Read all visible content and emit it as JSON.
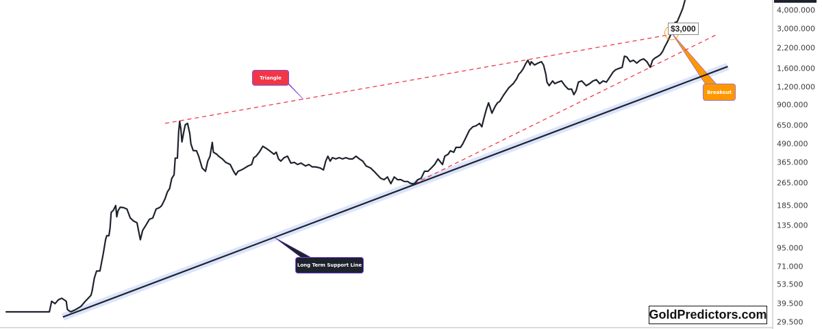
{
  "chart_data": {
    "type": "line",
    "title": "",
    "xlabel": "",
    "ylabel": "",
    "y_scale": "log",
    "ylim": [
      26.5,
      4700
    ],
    "xlim": [
      1964.0,
      2032.8
    ],
    "grid": false,
    "legend": "none",
    "y_ticks": [
      "4,000.000",
      "3,000.000",
      "2,200.000",
      "1,600.000",
      "1,200.000",
      "900.000",
      "650.000",
      "490.000",
      "365.000",
      "265.000",
      "185.000",
      "135.000",
      "95.000",
      "71.000",
      "53.500",
      "39.500",
      "29.500"
    ],
    "y_tick_values": [
      4000,
      3000,
      2200,
      1600,
      1200,
      900,
      650,
      490,
      365,
      265,
      185,
      135,
      95,
      71,
      53.5,
      39.5,
      29.5
    ],
    "colors": {
      "price": "#1e222d",
      "support": "#1e222d",
      "support_band": "#dbe4fb",
      "triangle": "#f23645",
      "breakout": "#ff9800"
    },
    "series": [
      {
        "points": [
          [
            1964.5,
            34.7
          ],
          [
            1968.4,
            34.7
          ],
          [
            1968.6,
            41
          ],
          [
            1968.9,
            39.5
          ],
          [
            1969.2,
            42
          ],
          [
            1969.5,
            43
          ],
          [
            1969.9,
            41
          ],
          [
            1970.0,
            36
          ],
          [
            1970.3,
            34.7
          ],
          [
            1970.7,
            35.8
          ],
          [
            1971.2,
            37.8
          ],
          [
            1971.6,
            41
          ],
          [
            1972.1,
            45
          ],
          [
            1972.2,
            48
          ],
          [
            1972.4,
            59
          ],
          [
            1972.6,
            66
          ],
          [
            1972.9,
            66
          ],
          [
            1973.2,
            87
          ],
          [
            1973.4,
            108
          ],
          [
            1973.5,
            115
          ],
          [
            1973.7,
            115
          ],
          [
            1973.8,
            130
          ],
          [
            1973.9,
            166
          ],
          [
            1974.1,
            172
          ],
          [
            1974.3,
            185
          ],
          [
            1974.4,
            155
          ],
          [
            1974.5,
            170
          ],
          [
            1974.7,
            180
          ],
          [
            1975.0,
            179
          ],
          [
            1975.3,
            175
          ],
          [
            1975.6,
            152
          ],
          [
            1975.9,
            145
          ],
          [
            1976.2,
            141
          ],
          [
            1976.5,
            108
          ],
          [
            1976.7,
            125
          ],
          [
            1977.0,
            136
          ],
          [
            1977.3,
            149
          ],
          [
            1977.6,
            152
          ],
          [
            1977.9,
            175
          ],
          [
            1978.2,
            179
          ],
          [
            1978.4,
            185
          ],
          [
            1978.7,
            206
          ],
          [
            1978.9,
            229
          ],
          [
            1979.1,
            242
          ],
          [
            1979.3,
            284
          ],
          [
            1979.5,
            300
          ],
          [
            1979.6,
            390
          ],
          [
            1979.8,
            390
          ],
          [
            1979.9,
            580
          ],
          [
            1980.0,
            696
          ],
          [
            1980.1,
            620
          ],
          [
            1980.2,
            504
          ],
          [
            1980.4,
            610
          ],
          [
            1980.5,
            660
          ],
          [
            1980.7,
            674
          ],
          [
            1980.9,
            573
          ],
          [
            1981.0,
            488
          ],
          [
            1981.2,
            440
          ],
          [
            1981.5,
            438
          ],
          [
            1981.7,
            400
          ],
          [
            1982.0,
            334
          ],
          [
            1982.3,
            317
          ],
          [
            1982.5,
            372
          ],
          [
            1982.7,
            402
          ],
          [
            1982.9,
            500
          ],
          [
            1983.0,
            428
          ],
          [
            1983.3,
            415
          ],
          [
            1983.5,
            400
          ],
          [
            1983.8,
            385
          ],
          [
            1984.1,
            365
          ],
          [
            1984.5,
            353
          ],
          [
            1984.8,
            317
          ],
          [
            1985.0,
            300
          ],
          [
            1985.2,
            317
          ],
          [
            1985.5,
            324
          ],
          [
            1985.8,
            334
          ],
          [
            1986.1,
            345
          ],
          [
            1986.4,
            353
          ],
          [
            1986.6,
            393
          ],
          [
            1986.8,
            402
          ],
          [
            1987.1,
            430
          ],
          [
            1987.4,
            470
          ],
          [
            1987.7,
            455
          ],
          [
            1988.0,
            438
          ],
          [
            1988.4,
            415
          ],
          [
            1988.6,
            428
          ],
          [
            1988.8,
            385
          ],
          [
            1989.0,
            372
          ],
          [
            1989.3,
            393
          ],
          [
            1989.6,
            402
          ],
          [
            1989.9,
            361
          ],
          [
            1990.2,
            365
          ],
          [
            1990.5,
            353
          ],
          [
            1990.8,
            361
          ],
          [
            1991.2,
            345
          ],
          [
            1991.5,
            353
          ],
          [
            1991.8,
            340
          ],
          [
            1992.1,
            340
          ],
          [
            1992.5,
            334
          ],
          [
            1992.8,
            324
          ],
          [
            1993.0,
            372
          ],
          [
            1993.2,
            402
          ],
          [
            1993.4,
            372
          ],
          [
            1993.6,
            393
          ],
          [
            1993.9,
            385
          ],
          [
            1994.2,
            393
          ],
          [
            1994.5,
            385
          ],
          [
            1994.8,
            393
          ],
          [
            1995.1,
            385
          ],
          [
            1995.4,
            385
          ],
          [
            1995.7,
            402
          ],
          [
            1996.0,
            385
          ],
          [
            1996.3,
            372
          ],
          [
            1996.6,
            345
          ],
          [
            1997.0,
            334
          ],
          [
            1997.3,
            317
          ],
          [
            1997.6,
            300
          ],
          [
            1997.9,
            284
          ],
          [
            1998.2,
            278
          ],
          [
            1998.5,
            290
          ],
          [
            1998.8,
            261
          ],
          [
            1999.1,
            290
          ],
          [
            1999.4,
            278
          ],
          [
            1999.7,
            278
          ],
          [
            2000.0,
            270
          ],
          [
            2000.3,
            270
          ],
          [
            2000.6,
            261
          ],
          [
            2000.9,
            261
          ],
          [
            2001.2,
            278
          ],
          [
            2001.5,
            284
          ],
          [
            2001.8,
            317
          ],
          [
            2002.1,
            317
          ],
          [
            2002.4,
            334
          ],
          [
            2002.7,
            353
          ],
          [
            2003.0,
            385
          ],
          [
            2003.4,
            353
          ],
          [
            2003.6,
            402
          ],
          [
            2003.9,
            415
          ],
          [
            2004.1,
            438
          ],
          [
            2004.4,
            428
          ],
          [
            2004.6,
            462
          ],
          [
            2005.0,
            462
          ],
          [
            2005.2,
            488
          ],
          [
            2005.5,
            543
          ],
          [
            2005.8,
            605
          ],
          [
            2006.1,
            639
          ],
          [
            2006.4,
            650
          ],
          [
            2006.7,
            674
          ],
          [
            2006.9,
            639
          ],
          [
            2007.1,
            735
          ],
          [
            2007.3,
            837
          ],
          [
            2007.5,
            932
          ],
          [
            2007.7,
            837
          ],
          [
            2007.8,
            792
          ],
          [
            2008.1,
            883
          ],
          [
            2008.3,
            932
          ],
          [
            2008.5,
            953
          ],
          [
            2008.8,
            1040
          ],
          [
            2009.0,
            1095
          ],
          [
            2009.3,
            1180
          ],
          [
            2009.5,
            1220
          ],
          [
            2009.7,
            1260
          ],
          [
            2010.0,
            1360
          ],
          [
            2010.2,
            1465
          ],
          [
            2010.4,
            1515
          ],
          [
            2010.6,
            1600
          ],
          [
            2010.8,
            1720
          ],
          [
            2011.0,
            1820
          ],
          [
            2011.2,
            1690
          ],
          [
            2011.3,
            1780
          ],
          [
            2011.6,
            1690
          ],
          [
            2011.9,
            1740
          ],
          [
            2012.2,
            1780
          ],
          [
            2012.4,
            1690
          ],
          [
            2012.6,
            1465
          ],
          [
            2012.7,
            1290
          ],
          [
            2012.9,
            1220
          ],
          [
            2013.2,
            1315
          ],
          [
            2013.4,
            1260
          ],
          [
            2013.7,
            1290
          ],
          [
            2014.0,
            1315
          ],
          [
            2014.3,
            1220
          ],
          [
            2014.6,
            1155
          ],
          [
            2014.9,
            1155
          ],
          [
            2015.1,
            1060
          ],
          [
            2015.3,
            1130
          ],
          [
            2015.5,
            1290
          ],
          [
            2015.8,
            1315
          ],
          [
            2016.2,
            1220
          ],
          [
            2016.5,
            1260
          ],
          [
            2016.8,
            1315
          ],
          [
            2017.1,
            1340
          ],
          [
            2017.4,
            1260
          ],
          [
            2017.7,
            1315
          ],
          [
            2018.0,
            1290
          ],
          [
            2018.3,
            1400
          ],
          [
            2018.6,
            1515
          ],
          [
            2018.8,
            1565
          ],
          [
            2019.1,
            1600
          ],
          [
            2019.4,
            1630
          ],
          [
            2019.6,
            1940
          ],
          [
            2019.8,
            1920
          ],
          [
            2020.1,
            1780
          ],
          [
            2020.4,
            1820
          ],
          [
            2020.7,
            1740
          ],
          [
            2021.0,
            1820
          ],
          [
            2021.3,
            1860
          ],
          [
            2021.6,
            1780
          ],
          [
            2021.9,
            1630
          ],
          [
            2022.1,
            1820
          ],
          [
            2022.3,
            1880
          ],
          [
            2022.6,
            1940
          ],
          [
            2022.8,
            1990
          ],
          [
            2023.0,
            2090
          ],
          [
            2023.2,
            2260
          ],
          [
            2023.4,
            2410
          ],
          [
            2023.6,
            2600
          ],
          [
            2023.8,
            2800
          ],
          [
            2023.9,
            2860
          ],
          [
            2024.1,
            3300
          ],
          [
            2024.3,
            3340
          ],
          [
            2024.6,
            3790
          ],
          [
            2024.8,
            4130
          ],
          [
            2025.0,
            4700
          ]
        ]
      }
    ],
    "trendlines": {
      "support": [
        [
          1969.6,
          32
        ],
        [
          2028.8,
          1650
        ]
      ],
      "triangle_upper": [
        [
          1978.7,
          674
        ],
        [
          2025.0,
          2840
        ]
      ],
      "triangle_lower": [
        [
          2000.9,
          261
        ],
        [
          2027.7,
          2700
        ]
      ]
    },
    "breakout_point": [
      2023.8,
      2800
    ],
    "annotations": {
      "triangle": "Triangle",
      "support": "Long Term Support Line",
      "breakout": "Breakout",
      "price_label": "$3,000"
    }
  },
  "watermark": "GoldPredictors.com"
}
